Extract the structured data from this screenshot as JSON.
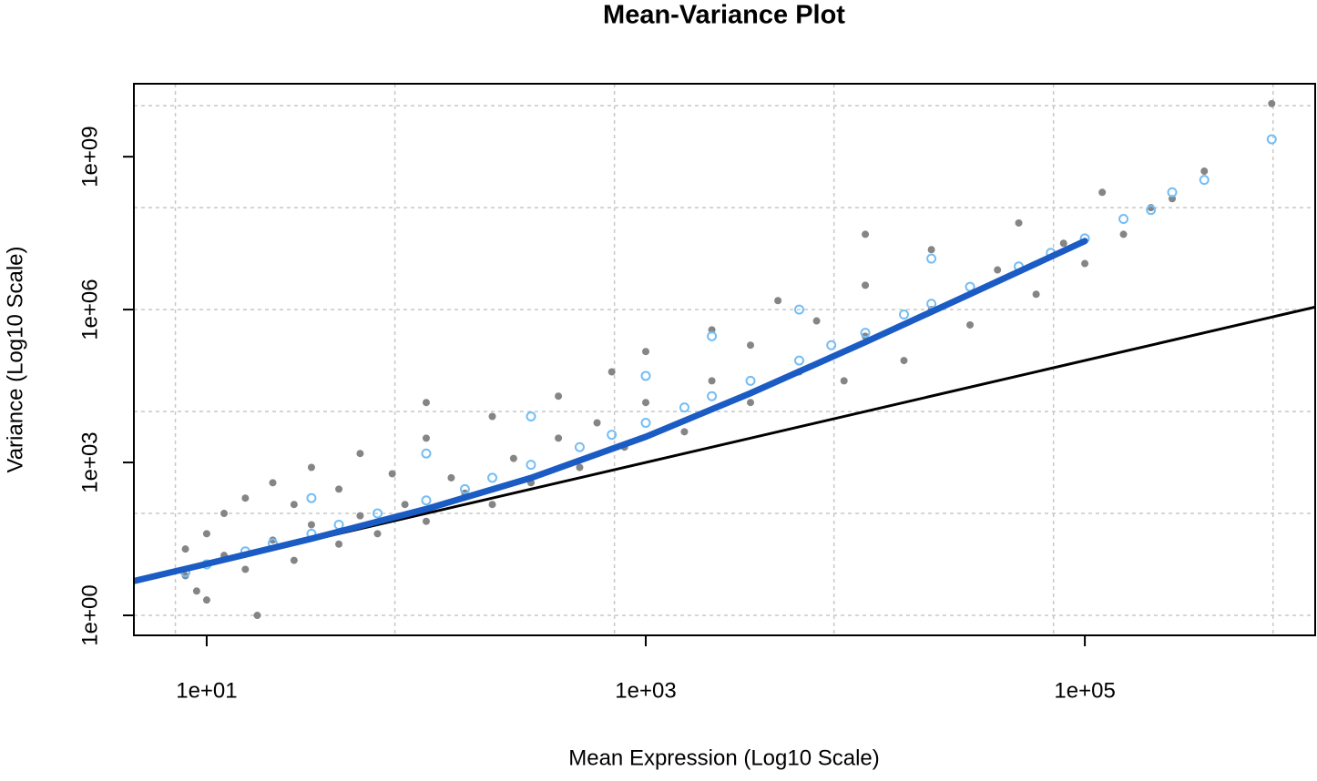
{
  "chart_data": {
    "type": "scatter",
    "title": "Mean-Variance Plot",
    "xlabel": "Mean Expression (Log10 Scale)",
    "ylabel": "Variance (Log10 Scale)",
    "xlog": true,
    "ylog": true,
    "grid": true,
    "xlim": [
      4.66,
      1120000
    ],
    "ylim": [
      0.405,
      27000000000
    ],
    "xticks": [
      {
        "value": 10,
        "label": "1e+01"
      },
      {
        "value": 1000,
        "label": "1e+03"
      },
      {
        "value": 100000,
        "label": "1e+05"
      }
    ],
    "yticks": [
      {
        "value": 1,
        "label": "1e+00"
      },
      {
        "value": 1000,
        "label": "1e+03"
      },
      {
        "value": 1000000,
        "label": "1e+06"
      },
      {
        "value": 1000000000,
        "label": "1e+09"
      }
    ],
    "xgrid": [
      7.2,
      72,
      720,
      7200,
      72000,
      720000
    ],
    "ygrid": [
      1,
      100,
      10000,
      1000000,
      100000000,
      10000000000
    ],
    "series": [
      {
        "color": "#858585",
        "marker": "filled",
        "x": [
          8,
          8,
          9,
          10,
          10,
          12,
          12,
          15,
          15,
          17,
          20,
          20,
          25,
          25,
          30,
          30,
          40,
          40,
          50,
          50,
          60,
          70,
          80,
          100,
          100,
          100,
          130,
          150,
          200,
          200,
          250,
          300,
          400,
          400,
          500,
          600,
          700,
          800,
          1000,
          1000,
          1500,
          2000,
          2000,
          3000,
          3000,
          4000,
          5000,
          6000,
          8000,
          10000,
          10000,
          10000,
          15000,
          20000,
          20000,
          30000,
          40000,
          50000,
          60000,
          80000,
          100000,
          120000,
          150000,
          200000,
          250000,
          350000,
          710000
        ],
        "values": [
          6,
          20,
          3,
          40,
          2,
          15,
          100,
          8,
          200,
          1,
          30,
          400,
          12,
          150,
          60,
          800,
          25,
          300,
          90,
          1500,
          40,
          600,
          150,
          3000,
          70,
          15000,
          500,
          250,
          8000,
          150,
          1200,
          400,
          20000,
          3000,
          800,
          6000,
          60000,
          2000,
          15000,
          150000,
          4000,
          40000,
          400000,
          15000,
          200000,
          1500000,
          60000,
          600000,
          40000,
          3000000,
          300000,
          30000000,
          100000,
          1000000,
          15000000,
          500000,
          6000000,
          50000000,
          2000000,
          20000000,
          8000000,
          200000000,
          30000000,
          100000000,
          150000000,
          520000000,
          11000000000
        ]
      },
      {
        "color": "#000000",
        "kind": "line",
        "width": 3,
        "x": [
          4.66,
          1120000
        ],
        "values": [
          4.66,
          1120000
        ]
      },
      {
        "color": "#74bdf5",
        "marker": "open",
        "x": [
          8,
          10,
          15,
          20,
          30,
          40,
          60,
          100,
          150,
          200,
          300,
          500,
          700,
          1000,
          1500,
          2000,
          3000,
          5000,
          7000,
          10000,
          15000,
          20000,
          30000,
          50000,
          70000,
          100000,
          150000,
          200000,
          250000,
          350000,
          710000,
          30,
          100,
          300,
          1000,
          2000,
          5000,
          20000
        ],
        "values": [
          7,
          10,
          18,
          26,
          40,
          60,
          100,
          180,
          300,
          500,
          900,
          2000,
          3500,
          6000,
          12000,
          20000,
          40000,
          100000,
          200000,
          350000,
          800000,
          1300000,
          2800000,
          7000000,
          13000000,
          25000000,
          60000000,
          90000000,
          200000000,
          350000000,
          2200000000,
          200,
          1500,
          8000,
          50000,
          300000,
          1000000,
          10000000
        ]
      },
      {
        "color": "#1a5bc4",
        "kind": "line",
        "width": 7,
        "x": [
          4.66,
          10,
          30,
          100,
          300,
          1000,
          3000,
          10000,
          30000,
          100000
        ],
        "values": [
          4.71,
          10.22,
          32,
          122,
          498,
          3200,
          22800,
          230000,
          2010000,
          22100000
        ]
      }
    ]
  }
}
